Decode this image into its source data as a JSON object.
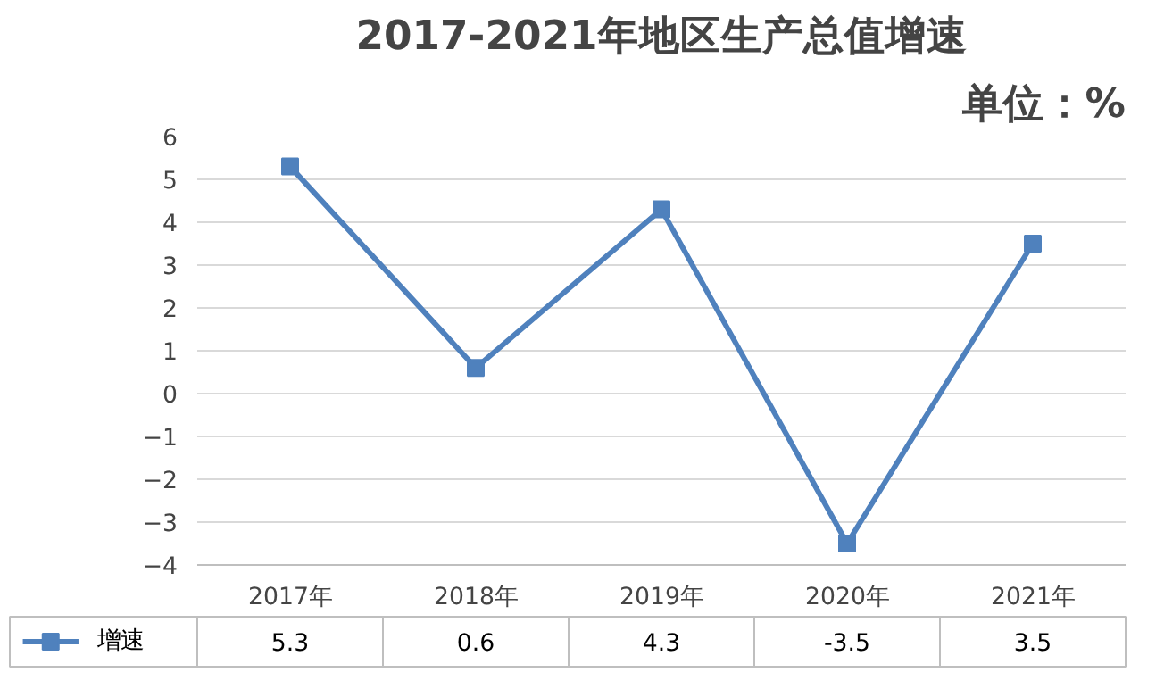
{
  "chart_data": {
    "type": "line",
    "title": "2017-2021年地区生产总值增速",
    "subtitle": "单位：%",
    "categories": [
      "2017年",
      "2018年",
      "2019年",
      "2020年",
      "2021年"
    ],
    "series": [
      {
        "name": "增速",
        "color": "#4f81bd",
        "values": [
          5.3,
          0.6,
          4.3,
          -3.5,
          3.5
        ]
      }
    ],
    "ylim": [
      -4,
      6
    ],
    "yticks": [
      -4,
      -3,
      -2,
      -1,
      0,
      1,
      2,
      3,
      4,
      5,
      6
    ],
    "grid": "y",
    "legend": "bottom",
    "marker": "square",
    "line_style": "solid",
    "data_labels": true
  }
}
